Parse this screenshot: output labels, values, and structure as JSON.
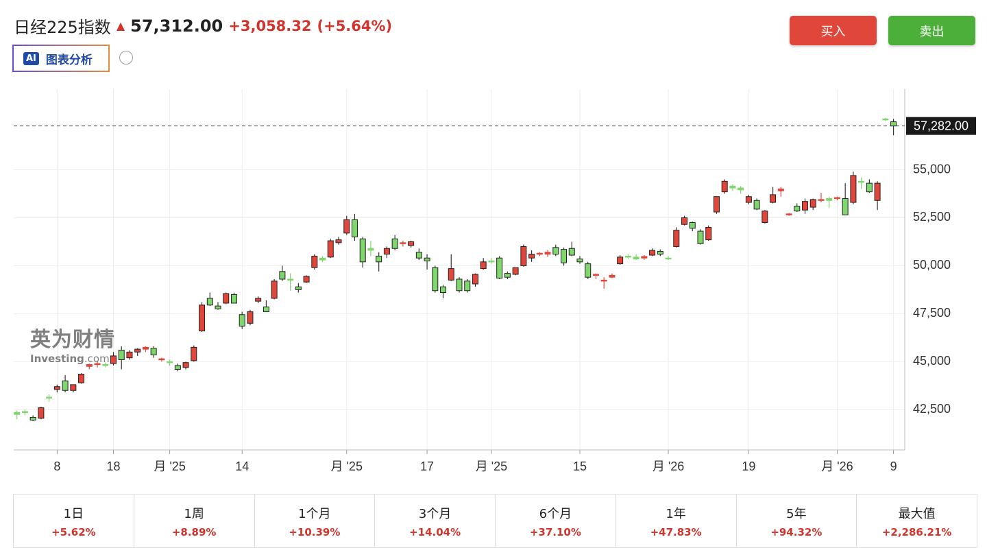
{
  "header": {
    "title": "日经225指数",
    "price": "57,312.00",
    "change": "+3,058.32",
    "change_pct": "(+5.64%)",
    "ai_badge": "AI",
    "ai_label": "图表分析",
    "buy": "买入",
    "sell": "卖出"
  },
  "watermark": {
    "brand": "英为财情",
    "site": "Investing",
    "domain": ".com"
  },
  "chart_data": {
    "type": "candlestick",
    "xlim": [
      -0.4,
      110.4
    ],
    "xticks": [
      {
        "value": 5,
        "label": "8"
      },
      {
        "value": 12,
        "label": "18"
      },
      {
        "value": 19,
        "label": "月 '25"
      },
      {
        "value": 28,
        "label": "14"
      },
      {
        "value": 41,
        "label": "月 '25"
      },
      {
        "value": 51,
        "label": "17"
      },
      {
        "value": 59,
        "label": "月 '25"
      },
      {
        "value": 70,
        "label": "15"
      },
      {
        "value": 81,
        "label": "月 '26"
      },
      {
        "value": 91,
        "label": "19"
      },
      {
        "value": 102,
        "label": "月 '26"
      },
      {
        "value": 109,
        "label": "9"
      }
    ],
    "ylim": [
      40400,
      59200
    ],
    "yticks": [
      {
        "value": 42500,
        "label": "42,500"
      },
      {
        "value": 45000,
        "label": "45,000"
      },
      {
        "value": 47500,
        "label": "47,500"
      },
      {
        "value": 50000,
        "label": "50,000"
      },
      {
        "value": 52500,
        "label": "52,500"
      },
      {
        "value": 55000,
        "label": "55,000"
      }
    ],
    "grid": true,
    "up_color": "#e0463a",
    "down_color": "#7fd66c",
    "price_line": {
      "value": 57282,
      "label": "57,282.00"
    },
    "ohlc": [
      [
        42350,
        42450,
        42000,
        42250
      ],
      [
        42400,
        42500,
        42200,
        42350
      ],
      [
        42100,
        42200,
        41900,
        41950
      ],
      [
        42050,
        42650,
        42000,
        42600
      ],
      [
        43150,
        43300,
        42900,
        43100
      ],
      [
        43550,
        43800,
        43400,
        43700
      ],
      [
        44000,
        44300,
        43400,
        43500
      ],
      [
        43500,
        43800,
        43400,
        43800
      ],
      [
        43900,
        44400,
        43850,
        44350
      ],
      [
        44750,
        44900,
        44600,
        44850
      ],
      [
        44850,
        45000,
        44700,
        44900
      ],
      [
        44850,
        44950,
        44700,
        44800
      ],
      [
        44900,
        45500,
        44800,
        45300
      ],
      [
        45600,
        45800,
        44600,
        45100
      ],
      [
        45200,
        45600,
        45100,
        45500
      ],
      [
        45500,
        45700,
        45300,
        45650
      ],
      [
        45650,
        45800,
        45500,
        45750
      ],
      [
        45700,
        45800,
        45200,
        45350
      ],
      [
        45100,
        45200,
        45000,
        45150
      ],
      [
        45000,
        45100,
        44800,
        44950
      ],
      [
        44800,
        44900,
        44500,
        44600
      ],
      [
        44700,
        45000,
        44600,
        44950
      ],
      [
        45050,
        45850,
        45000,
        45750
      ],
      [
        46600,
        48100,
        46550,
        47950
      ],
      [
        48300,
        48600,
        47900,
        47950
      ],
      [
        47900,
        48100,
        47700,
        47750
      ],
      [
        48050,
        48600,
        48000,
        48550
      ],
      [
        48500,
        48600,
        48050,
        48050
      ],
      [
        47450,
        47600,
        46700,
        46850
      ],
      [
        47000,
        47700,
        46900,
        47600
      ],
      [
        48150,
        48400,
        48050,
        48300
      ],
      [
        47850,
        48200,
        47600,
        47600
      ],
      [
        48300,
        49300,
        48250,
        49200
      ],
      [
        49700,
        50000,
        49200,
        49300
      ],
      [
        49300,
        49600,
        48700,
        49250
      ],
      [
        48900,
        49100,
        48600,
        48750
      ],
      [
        49150,
        49500,
        49100,
        49450
      ],
      [
        49900,
        50600,
        49800,
        50500
      ],
      [
        50400,
        50500,
        50200,
        50300
      ],
      [
        50450,
        51400,
        50400,
        51300
      ],
      [
        51200,
        51500,
        51100,
        51350
      ],
      [
        51700,
        52600,
        51600,
        52400
      ],
      [
        52400,
        52700,
        51300,
        51500
      ],
      [
        51400,
        51500,
        49900,
        50200
      ],
      [
        50900,
        51300,
        50500,
        50800
      ],
      [
        50500,
        50700,
        49700,
        50200
      ],
      [
        50600,
        51000,
        50400,
        50900
      ],
      [
        51400,
        51600,
        50800,
        50900
      ],
      [
        51150,
        51300,
        51000,
        51200
      ],
      [
        51050,
        51300,
        50950,
        51250
      ],
      [
        50700,
        50900,
        50300,
        50400
      ],
      [
        50400,
        50600,
        49800,
        50250
      ],
      [
        49900,
        50000,
        48600,
        48700
      ],
      [
        48900,
        49000,
        48300,
        48600
      ],
      [
        49250,
        50600,
        49200,
        49850
      ],
      [
        49300,
        49400,
        48600,
        48700
      ],
      [
        49200,
        49300,
        48600,
        48700
      ],
      [
        49050,
        49600,
        48900,
        49550
      ],
      [
        49850,
        50400,
        49800,
        50200
      ],
      [
        50250,
        50400,
        50100,
        50200
      ],
      [
        50400,
        50500,
        49300,
        49350
      ],
      [
        49600,
        49700,
        49300,
        49400
      ],
      [
        49550,
        49900,
        49500,
        49900
      ],
      [
        50000,
        51100,
        49950,
        51000
      ],
      [
        50400,
        50800,
        50200,
        50600
      ],
      [
        50600,
        50700,
        50500,
        50650
      ],
      [
        50600,
        50800,
        50450,
        50700
      ],
      [
        50950,
        51100,
        50500,
        50600
      ],
      [
        50850,
        50950,
        50000,
        50150
      ],
      [
        50900,
        51250,
        50500,
        50550
      ],
      [
        50350,
        50500,
        50100,
        50200
      ],
      [
        50100,
        50200,
        49300,
        49400
      ],
      [
        49500,
        49600,
        49300,
        49550
      ],
      [
        49200,
        49400,
        48800,
        49250
      ],
      [
        49400,
        49600,
        49350,
        49500
      ],
      [
        50100,
        50550,
        50050,
        50450
      ],
      [
        50500,
        50600,
        50350,
        50450
      ],
      [
        50450,
        50600,
        50300,
        50350
      ],
      [
        50400,
        50550,
        50300,
        50480
      ],
      [
        50550,
        50900,
        50500,
        50800
      ],
      [
        50750,
        50850,
        50500,
        50600
      ],
      [
        50400,
        50500,
        50300,
        50350
      ],
      [
        51000,
        52000,
        50950,
        51850
      ],
      [
        52150,
        52600,
        52100,
        52500
      ],
      [
        52250,
        52300,
        51800,
        51950
      ],
      [
        51800,
        51900,
        51100,
        51150
      ],
      [
        51350,
        52100,
        51300,
        52000
      ],
      [
        52800,
        53600,
        52700,
        53600
      ],
      [
        53850,
        54500,
        53750,
        54400
      ],
      [
        54150,
        54250,
        53900,
        54050
      ],
      [
        54050,
        54150,
        53750,
        53950
      ],
      [
        53300,
        53700,
        53200,
        53600
      ],
      [
        53400,
        53500,
        52900,
        52950
      ],
      [
        52250,
        52900,
        52200,
        52850
      ],
      [
        53300,
        54100,
        53250,
        53700
      ],
      [
        53900,
        54100,
        53600,
        54000
      ],
      [
        52650,
        52750,
        52600,
        52700
      ],
      [
        53100,
        53250,
        52800,
        52850
      ],
      [
        52900,
        53500,
        52700,
        53350
      ],
      [
        53050,
        53500,
        52900,
        53450
      ],
      [
        53400,
        53800,
        53300,
        53450
      ],
      [
        53500,
        53600,
        53000,
        53400
      ],
      [
        53500,
        53600,
        53400,
        53550
      ],
      [
        53500,
        54300,
        52650,
        52650
      ],
      [
        53300,
        54900,
        53200,
        54700
      ],
      [
        54400,
        54600,
        54000,
        54350
      ],
      [
        54300,
        54500,
        53800,
        53850
      ],
      [
        53400,
        54400,
        52900,
        54300
      ],
      [
        57650,
        57700,
        57550,
        57600
      ],
      [
        57500,
        57650,
        56800,
        57282
      ]
    ]
  },
  "performance": [
    {
      "period": "1日",
      "change": "+5.62%"
    },
    {
      "period": "1周",
      "change": "+8.89%"
    },
    {
      "period": "1个月",
      "change": "+10.39%"
    },
    {
      "period": "3个月",
      "change": "+14.04%"
    },
    {
      "period": "6个月",
      "change": "+37.10%"
    },
    {
      "period": "1年",
      "change": "+47.83%"
    },
    {
      "period": "5年",
      "change": "+94.32%"
    },
    {
      "period": "最大值",
      "change": "+2,286.21%"
    }
  ]
}
